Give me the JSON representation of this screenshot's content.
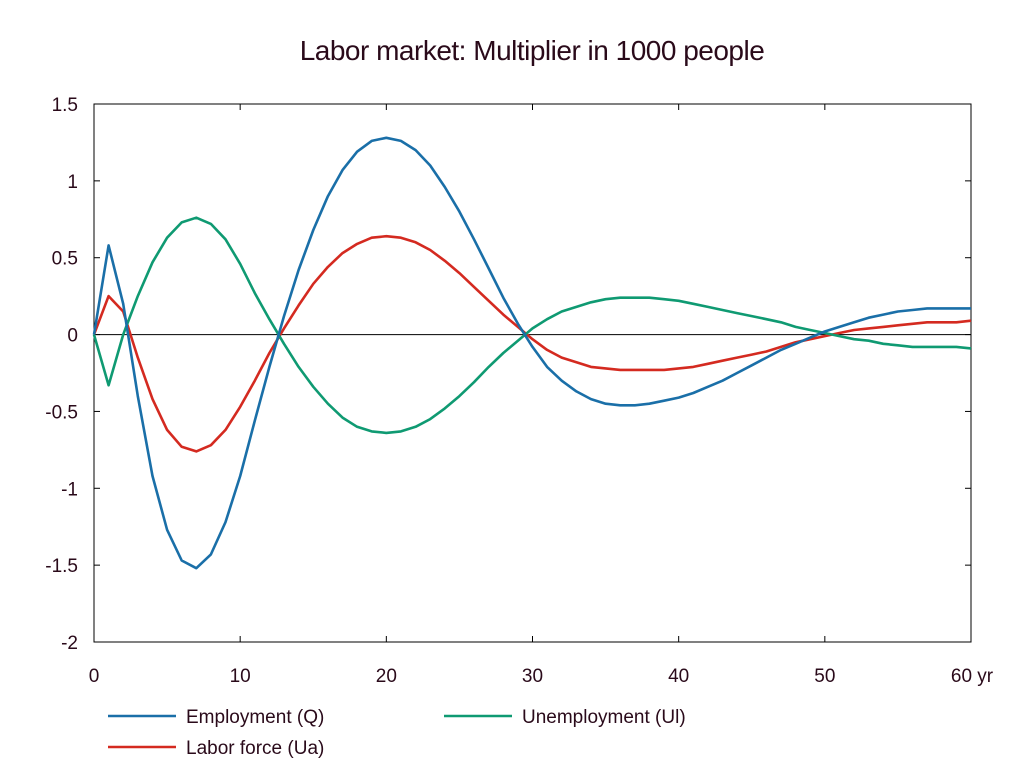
{
  "chart_data": {
    "type": "line",
    "title": "Labor market: Multiplier in 1000 people",
    "xlabel": "",
    "ylabel": "",
    "xlim": [
      0,
      60
    ],
    "ylim": [
      -2,
      1.5
    ],
    "x_ticks": [
      "0",
      "10",
      "20",
      "30",
      "40",
      "50",
      "60 yr"
    ],
    "y_ticks": [
      "1.5",
      "1",
      "0.5",
      "0",
      "-0.5",
      "-1",
      "-1.5",
      "-2"
    ],
    "grid": false,
    "x": [
      0,
      1,
      2,
      3,
      4,
      5,
      6,
      7,
      8,
      9,
      10,
      11,
      12,
      13,
      14,
      15,
      16,
      17,
      18,
      19,
      20,
      21,
      22,
      23,
      24,
      25,
      26,
      27,
      28,
      29,
      30,
      31,
      32,
      33,
      34,
      35,
      36,
      37,
      38,
      39,
      40,
      41,
      42,
      43,
      44,
      45,
      46,
      47,
      48,
      49,
      50,
      51,
      52,
      53,
      54,
      55,
      56,
      57,
      58,
      59,
      60
    ],
    "series": [
      {
        "name": "Employment (Q)",
        "color": "#1a6fa8",
        "values": [
          0,
          0.58,
          0.2,
          -0.4,
          -0.92,
          -1.27,
          -1.47,
          -1.52,
          -1.43,
          -1.22,
          -0.92,
          -0.56,
          -0.21,
          0.12,
          0.42,
          0.68,
          0.9,
          1.07,
          1.19,
          1.26,
          1.28,
          1.26,
          1.2,
          1.1,
          0.96,
          0.8,
          0.62,
          0.43,
          0.24,
          0.07,
          -0.08,
          -0.21,
          -0.3,
          -0.37,
          -0.42,
          -0.45,
          -0.46,
          -0.46,
          -0.45,
          -0.43,
          -0.41,
          -0.38,
          -0.34,
          -0.3,
          -0.25,
          -0.2,
          -0.15,
          -0.1,
          -0.06,
          -0.02,
          0.02,
          0.05,
          0.08,
          0.11,
          0.13,
          0.15,
          0.16,
          0.17,
          0.17,
          0.17,
          0.17
        ]
      },
      {
        "name": "Unemployment (Ul)",
        "color": "#0f9a72",
        "values": [
          0,
          -0.33,
          0.0,
          0.25,
          0.47,
          0.63,
          0.73,
          0.76,
          0.72,
          0.62,
          0.46,
          0.27,
          0.1,
          -0.06,
          -0.21,
          -0.34,
          -0.45,
          -0.54,
          -0.6,
          -0.63,
          -0.64,
          -0.63,
          -0.6,
          -0.55,
          -0.48,
          -0.4,
          -0.31,
          -0.21,
          -0.12,
          -0.04,
          0.04,
          0.1,
          0.15,
          0.18,
          0.21,
          0.23,
          0.24,
          0.24,
          0.24,
          0.23,
          0.22,
          0.2,
          0.18,
          0.16,
          0.14,
          0.12,
          0.1,
          0.08,
          0.05,
          0.03,
          0.01,
          -0.01,
          -0.03,
          -0.04,
          -0.06,
          -0.07,
          -0.08,
          -0.08,
          -0.08,
          -0.08,
          -0.09
        ]
      },
      {
        "name": "Labor force (Ua)",
        "color": "#d42a20",
        "values": [
          0,
          0.25,
          0.15,
          -0.15,
          -0.42,
          -0.62,
          -0.73,
          -0.76,
          -0.72,
          -0.62,
          -0.47,
          -0.3,
          -0.12,
          0.04,
          0.19,
          0.33,
          0.44,
          0.53,
          0.59,
          0.63,
          0.64,
          0.63,
          0.6,
          0.55,
          0.48,
          0.4,
          0.31,
          0.22,
          0.13,
          0.05,
          -0.03,
          -0.1,
          -0.15,
          -0.18,
          -0.21,
          -0.22,
          -0.23,
          -0.23,
          -0.23,
          -0.23,
          -0.22,
          -0.21,
          -0.19,
          -0.17,
          -0.15,
          -0.13,
          -0.11,
          -0.08,
          -0.05,
          -0.03,
          -0.01,
          0.01,
          0.03,
          0.04,
          0.05,
          0.06,
          0.07,
          0.08,
          0.08,
          0.08,
          0.09
        ]
      }
    ],
    "legend": {
      "placement": "bottom",
      "order": [
        "Employment (Q)",
        "Unemployment (Ul)",
        "Labor force (Ua)"
      ]
    }
  }
}
